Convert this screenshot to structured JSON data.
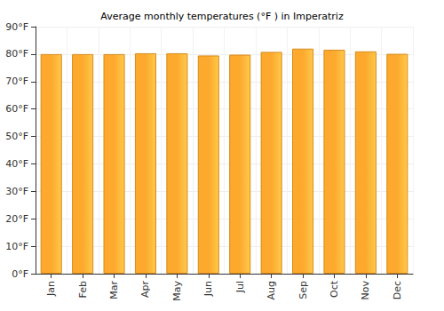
{
  "chart_data": {
    "type": "bar",
    "title": "Average monthly temperatures (°F ) in Imperatriz",
    "categories": [
      "Jan",
      "Feb",
      "Mar",
      "Apr",
      "May",
      "Jun",
      "Jul",
      "Aug",
      "Sep",
      "Oct",
      "Nov",
      "Dec"
    ],
    "values": [
      80.0,
      80.0,
      80.0,
      80.3,
      80.3,
      79.5,
      79.8,
      80.8,
      82.0,
      81.6,
      81.0,
      80.1
    ],
    "color": "#fca92e",
    "ylim": [
      0,
      90
    ],
    "yticks": [
      {
        "value": 0,
        "label": "0°F"
      },
      {
        "value": 10,
        "label": "10°F"
      },
      {
        "value": 20,
        "label": "20°F"
      },
      {
        "value": 30,
        "label": "30°F"
      },
      {
        "value": 40,
        "label": "40°F"
      },
      {
        "value": 50,
        "label": "50°F"
      },
      {
        "value": 60,
        "label": "60°F"
      },
      {
        "value": 70,
        "label": "70°F"
      },
      {
        "value": 80,
        "label": "80°F"
      },
      {
        "value": 90,
        "label": "90°F"
      }
    ],
    "grid": true
  }
}
